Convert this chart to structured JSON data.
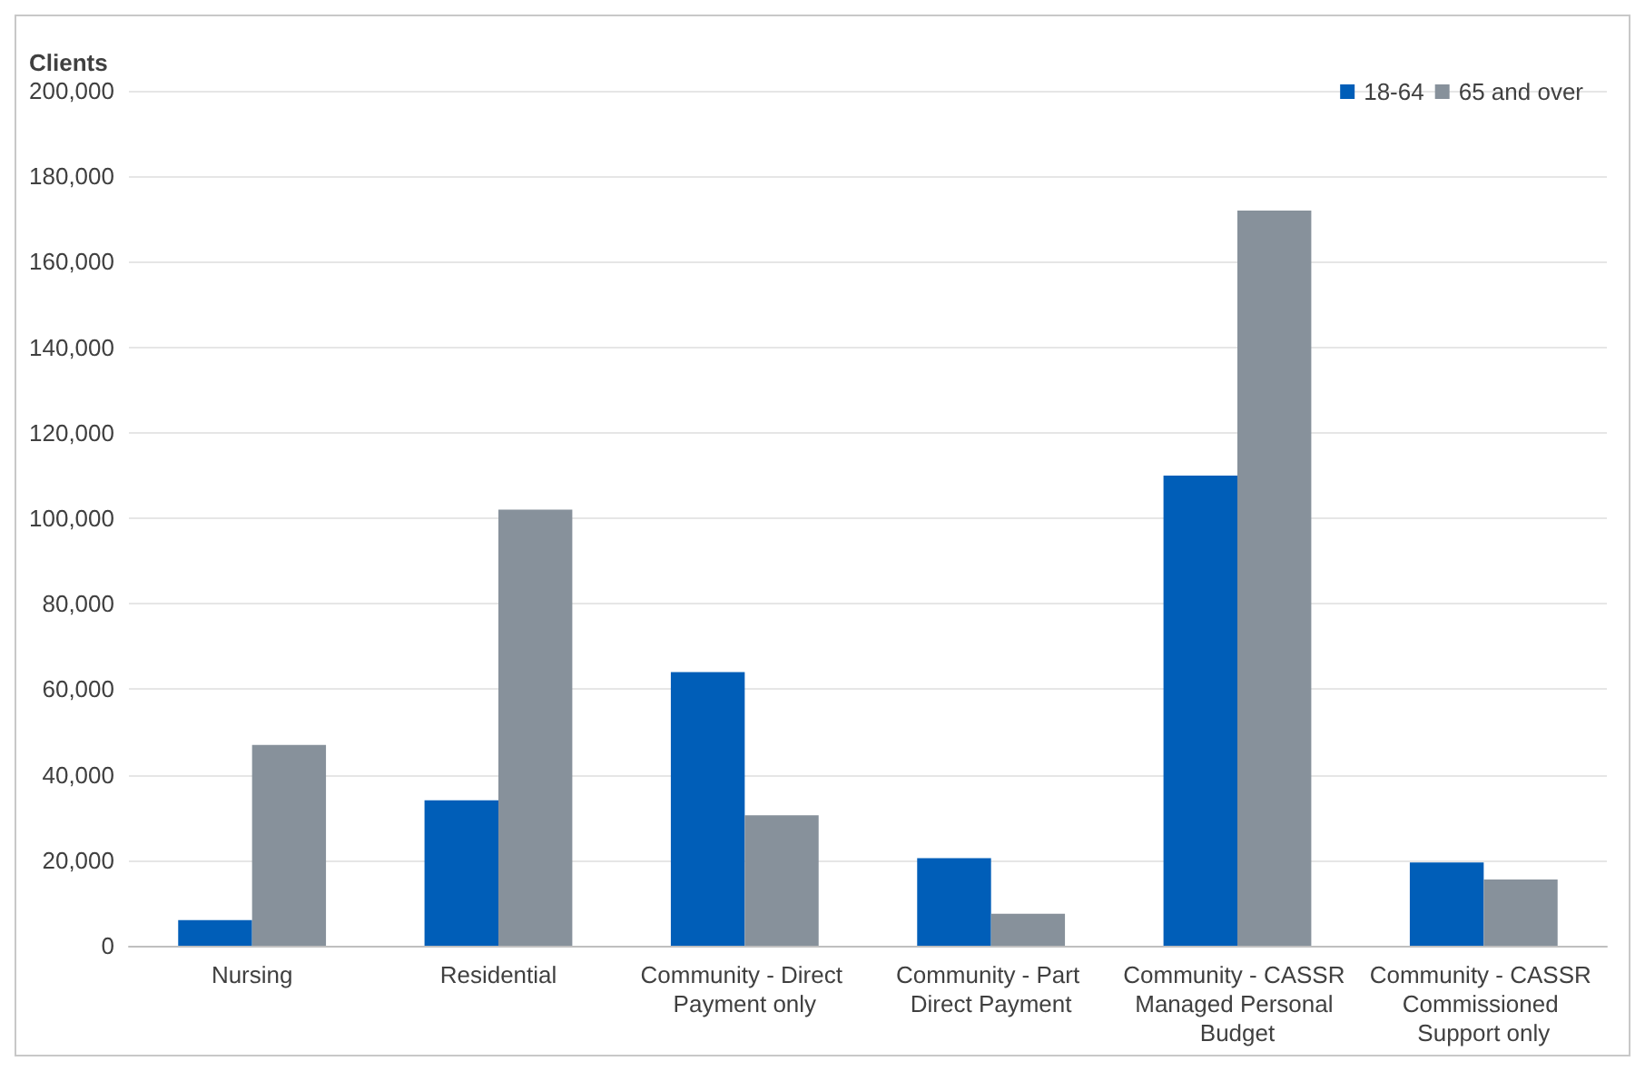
{
  "chart_data": {
    "type": "bar",
    "ylabel": "Clients",
    "categories": [
      "Nursing",
      "Residential",
      "Community - Direct Payment only",
      "Community - Part Direct Payment",
      "Community - CASSR Managed Personal Budget",
      "Community - CASSR Commissioned Support only"
    ],
    "series": [
      {
        "name": "18-64",
        "color": "#005eb8",
        "values": [
          6000,
          34000,
          64000,
          20500,
          110000,
          19500
        ]
      },
      {
        "name": "65 and over",
        "color": "#87919b",
        "values": [
          47000,
          102000,
          30500,
          7500,
          172000,
          15500
        ]
      }
    ],
    "ylim": [
      0,
      200000
    ],
    "yticks": [
      0,
      {
        "value": 20000,
        "label": "20,000"
      },
      {
        "value": 40000,
        "label": "40,000"
      },
      {
        "value": 60000,
        "label": "60,000"
      },
      {
        "value": 80000,
        "label": "80,000"
      },
      {
        "value": 100000,
        "label": "100,000"
      },
      {
        "value": 120000,
        "label": "120,000"
      },
      {
        "value": 140000,
        "label": "140,000"
      },
      {
        "value": 160000,
        "label": "160,000"
      },
      {
        "value": 180000,
        "label": "180,000"
      },
      {
        "value": 200000,
        "label": "200,000"
      }
    ],
    "grid": "y",
    "legend": "top right"
  }
}
